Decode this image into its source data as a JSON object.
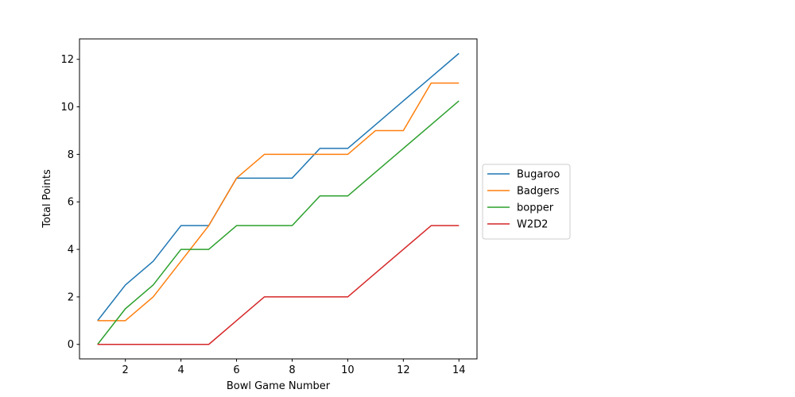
{
  "chart_data": {
    "type": "line",
    "title": "",
    "xlabel": "Bowl Game Number",
    "ylabel": "Total Points",
    "x": [
      1,
      2,
      3,
      4,
      5,
      6,
      7,
      8,
      9,
      10,
      11,
      12,
      13,
      14
    ],
    "xlim": [
      0.35,
      14.65
    ],
    "ylim": [
      -0.61,
      12.86
    ],
    "xticks": [
      2,
      4,
      6,
      8,
      10,
      12,
      14
    ],
    "yticks": [
      0,
      2,
      4,
      6,
      8,
      10,
      12
    ],
    "grid": false,
    "legend_position": "outside-right",
    "series": [
      {
        "name": "Bugaroo",
        "color": "#1f77b4",
        "values": [
          1,
          2.5,
          3.5,
          5,
          5,
          7,
          7,
          7,
          8.25,
          8.25,
          9.25,
          10.25,
          11.25,
          12.25
        ]
      },
      {
        "name": "Badgers",
        "color": "#ff7f0e",
        "values": [
          1,
          1,
          2,
          3.5,
          5,
          7,
          8,
          8,
          8,
          8,
          9,
          9,
          11,
          11
        ]
      },
      {
        "name": "bopper",
        "color": "#2ca02c",
        "values": [
          0,
          1.5,
          2.5,
          4,
          4,
          5,
          5,
          5,
          6.25,
          6.25,
          7.25,
          8.25,
          9.25,
          10.25
        ]
      },
      {
        "name": "W2D2",
        "color": "#d62728",
        "values": [
          0,
          0,
          0,
          0,
          0,
          1,
          2,
          2,
          2,
          2,
          3,
          4,
          5,
          5
        ]
      }
    ]
  }
}
